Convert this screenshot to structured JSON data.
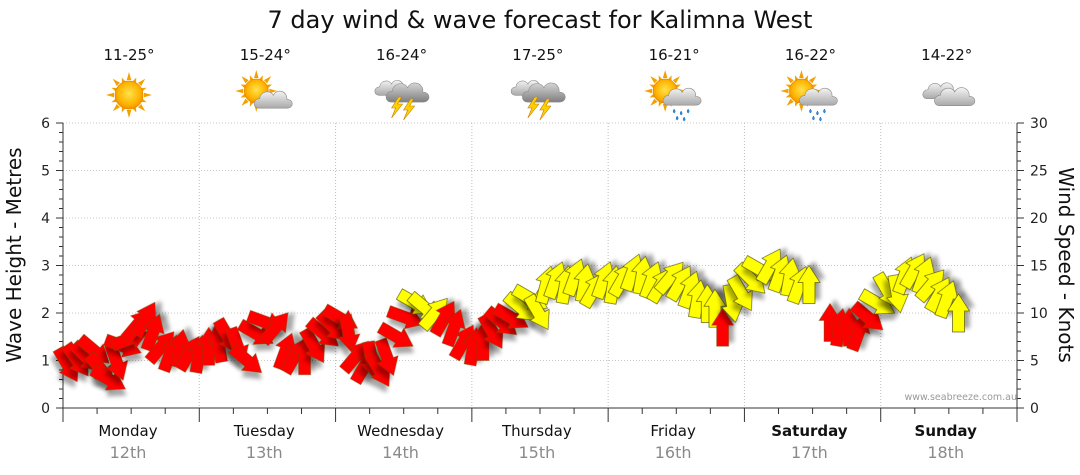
{
  "chart_data": {
    "type": "scatter",
    "title": "7 day wind & wave forecast for Kalimna West",
    "ylabel_left": "Wave Height - Metres",
    "ylabel_right": "Wind Speed - Knots",
    "ylim_left": [
      0,
      6
    ],
    "ylim_right": [
      0,
      30
    ],
    "yticks_left": [
      "0",
      "1",
      "2",
      "3",
      "4",
      "5",
      "6"
    ],
    "yticks_right": [
      "0",
      "5",
      "10",
      "15",
      "20",
      "25",
      "30"
    ],
    "grid": true,
    "watermark": "www.seabreeze.com.au",
    "days": [
      {
        "name": "Monday",
        "date": "12th",
        "temp": "11-25°",
        "icon": "sunny-icon",
        "bold": false
      },
      {
        "name": "Tuesday",
        "date": "13th",
        "temp": "15-24°",
        "icon": "partly-cloudy-icon",
        "bold": false
      },
      {
        "name": "Wednesday",
        "date": "14th",
        "temp": "16-24°",
        "icon": "thunderstorm-icon",
        "bold": false
      },
      {
        "name": "Thursday",
        "date": "15th",
        "temp": "17-25°",
        "icon": "thunderstorm-icon",
        "bold": false
      },
      {
        "name": "Friday",
        "date": "16th",
        "temp": "16-21°",
        "icon": "sun-shower-icon",
        "bold": false
      },
      {
        "name": "Saturday",
        "date": "17th",
        "temp": "16-22°",
        "icon": "sun-shower-icon",
        "bold": true
      },
      {
        "name": "Sunday",
        "date": "18th",
        "temp": "14-22°",
        "icon": "cloudy-icon",
        "bold": true
      }
    ],
    "wind_speed_scale": "right",
    "series": [
      {
        "color_light": "#ff0000",
        "color_strong": "#ffff00",
        "points": [
          {
            "t": 0.05,
            "speed": 4.5,
            "dir": 60
          },
          {
            "t": 0.15,
            "speed": 5.0,
            "dir": 55
          },
          {
            "t": 0.25,
            "speed": 5.3,
            "dir": 45
          },
          {
            "t": 0.33,
            "speed": 6.0,
            "dir": 40
          },
          {
            "t": 0.4,
            "speed": 4.0,
            "dir": 50
          },
          {
            "t": 0.48,
            "speed": 3.0,
            "dir": 30
          },
          {
            "t": 0.56,
            "speed": 4.8,
            "dir": 70
          },
          {
            "t": 0.63,
            "speed": 6.5,
            "dir": 20
          },
          {
            "t": 0.7,
            "speed": 7.3,
            "dir": 340
          },
          {
            "t": 0.78,
            "speed": 8.8,
            "dir": 310
          },
          {
            "t": 0.86,
            "speed": 9.4,
            "dir": 300
          },
          {
            "t": 0.94,
            "speed": 8.0,
            "dir": 290
          },
          {
            "t": 1.03,
            "speed": 6.5,
            "dir": 310
          },
          {
            "t": 1.12,
            "speed": 5.8,
            "dir": 290
          },
          {
            "t": 1.22,
            "speed": 6.3,
            "dir": 280
          },
          {
            "t": 1.32,
            "speed": 5.8,
            "dir": 300
          },
          {
            "t": 1.42,
            "speed": 5.7,
            "dir": 280
          },
          {
            "t": 1.52,
            "speed": 6.5,
            "dir": 270
          },
          {
            "t": 1.62,
            "speed": 6.8,
            "dir": 260
          },
          {
            "t": 1.72,
            "speed": 7.5,
            "dir": 60
          },
          {
            "t": 1.82,
            "speed": 6.5,
            "dir": 70
          },
          {
            "t": 1.92,
            "speed": 5.0,
            "dir": 40
          },
          {
            "t": 2.02,
            "speed": 7.8,
            "dir": 30
          },
          {
            "t": 2.12,
            "speed": 9.0,
            "dir": 20
          },
          {
            "t": 2.22,
            "speed": 8.5,
            "dir": 310
          },
          {
            "t": 2.32,
            "speed": 6.0,
            "dir": 290
          },
          {
            "t": 2.42,
            "speed": 5.5,
            "dir": 300
          },
          {
            "t": 2.52,
            "speed": 5.5,
            "dir": 270
          },
          {
            "t": 2.62,
            "speed": 6.5,
            "dir": 60
          },
          {
            "t": 2.72,
            "speed": 7.8,
            "dir": 40
          },
          {
            "t": 2.82,
            "speed": 8.5,
            "dir": 45
          },
          {
            "t": 2.9,
            "speed": 9.4,
            "dir": 30
          },
          {
            "t": 2.98,
            "speed": 7.8,
            "dir": 80
          },
          {
            "t": 3.06,
            "speed": 5.5,
            "dir": 310
          },
          {
            "t": 3.15,
            "speed": 4.5,
            "dir": 300
          },
          {
            "t": 3.22,
            "speed": 5.0,
            "dir": 80
          },
          {
            "t": 3.3,
            "speed": 4.0,
            "dir": 60
          },
          {
            "t": 3.38,
            "speed": 5.3,
            "dir": 70
          },
          {
            "t": 3.48,
            "speed": 7.5,
            "dir": 30
          },
          {
            "t": 3.58,
            "speed": 9.5,
            "dir": 20
          },
          {
            "t": 3.68,
            "speed": 11.0,
            "dir": 30
          },
          {
            "t": 3.78,
            "speed": 10.5,
            "dir": 40
          },
          {
            "t": 3.88,
            "speed": 10.0,
            "dir": 310
          },
          {
            "t": 3.98,
            "speed": 9.5,
            "dir": 300
          },
          {
            "t": 4.08,
            "speed": 8.5,
            "dir": 290
          },
          {
            "t": 4.18,
            "speed": 7.0,
            "dir": 300
          },
          {
            "t": 4.28,
            "speed": 6.5,
            "dir": 280
          },
          {
            "t": 4.38,
            "speed": 7.0,
            "dir": 270
          },
          {
            "t": 4.48,
            "speed": 8.0,
            "dir": 60
          },
          {
            "t": 4.58,
            "speed": 9.0,
            "dir": 40
          },
          {
            "t": 4.68,
            "speed": 9.5,
            "dir": 30
          },
          {
            "t": 4.78,
            "speed": 10.5,
            "dir": 40
          },
          {
            "t": 4.88,
            "speed": 11.5,
            "dir": 30
          },
          {
            "t": 4.96,
            "speed": 10.0,
            "dir": 60
          },
          {
            "t": 5.04,
            "speed": 13.0,
            "dir": 285
          },
          {
            "t": 5.14,
            "speed": 13.5,
            "dir": 290
          },
          {
            "t": 5.24,
            "speed": 13.0,
            "dir": 280
          },
          {
            "t": 5.34,
            "speed": 13.8,
            "dir": 290
          },
          {
            "t": 5.44,
            "speed": 13.2,
            "dir": 280
          },
          {
            "t": 5.54,
            "speed": 12.5,
            "dir": 300
          },
          {
            "t": 5.64,
            "speed": 13.5,
            "dir": 290
          },
          {
            "t": 5.74,
            "speed": 13.0,
            "dir": 280
          },
          {
            "t": 5.84,
            "speed": 13.6,
            "dir": 300
          },
          {
            "t": 5.94,
            "speed": 14.3,
            "dir": 290
          },
          {
            "t": 6.04,
            "speed": 14.0,
            "dir": 280
          },
          {
            "t": 6.14,
            "speed": 13.5,
            "dir": 290
          },
          {
            "t": 6.24,
            "speed": 13.0,
            "dir": 300
          },
          {
            "t": 6.34,
            "speed": 13.8,
            "dir": 310
          },
          {
            "t": 6.44,
            "speed": 13.2,
            "dir": 300
          },
          {
            "t": 6.54,
            "speed": 12.5,
            "dir": 290
          },
          {
            "t": 6.62,
            "speed": 11.5,
            "dir": 280
          },
          {
            "t": 6.72,
            "speed": 11.0,
            "dir": 270
          },
          {
            "t": 6.8,
            "speed": 10.5,
            "dir": 270
          },
          {
            "t": 6.88,
            "speed": 8.5,
            "dir": 270
          },
          {
            "t": 6.98,
            "speed": 11.0,
            "dir": 80
          },
          {
            "t": 7.08,
            "speed": 12.0,
            "dir": 60
          },
          {
            "t": 7.18,
            "speed": 13.5,
            "dir": 45
          },
          {
            "t": 7.28,
            "speed": 14.5,
            "dir": 30
          },
          {
            "t": 7.38,
            "speed": 15.0,
            "dir": 300
          },
          {
            "t": 7.48,
            "speed": 14.2,
            "dir": 290
          },
          {
            "t": 7.58,
            "speed": 13.8,
            "dir": 280
          },
          {
            "t": 7.68,
            "speed": 13.0,
            "dir": 290
          },
          {
            "t": 7.78,
            "speed": 13.0,
            "dir": 270
          },
          {
            "t": 8.0,
            "speed": 9.0,
            "dir": 270
          },
          {
            "t": 8.1,
            "speed": 8.5,
            "dir": 280
          },
          {
            "t": 8.2,
            "speed": 8.5,
            "dir": 270
          },
          {
            "t": 8.3,
            "speed": 8.0,
            "dir": 290
          },
          {
            "t": 8.4,
            "speed": 9.5,
            "dir": 40
          },
          {
            "t": 8.5,
            "speed": 11.0,
            "dir": 30
          },
          {
            "t": 8.6,
            "speed": 12.3,
            "dir": 60
          },
          {
            "t": 8.7,
            "speed": 12.0,
            "dir": 80
          },
          {
            "t": 8.78,
            "speed": 14.0,
            "dir": 290
          },
          {
            "t": 8.88,
            "speed": 14.5,
            "dir": 300
          },
          {
            "t": 8.98,
            "speed": 14.0,
            "dir": 290
          },
          {
            "t": 9.06,
            "speed": 13.0,
            "dir": 310
          },
          {
            "t": 9.14,
            "speed": 12.0,
            "dir": 300
          },
          {
            "t": 9.22,
            "speed": 11.5,
            "dir": 290
          },
          {
            "t": 9.34,
            "speed": 10.0,
            "dir": 270
          }
        ]
      }
    ]
  }
}
